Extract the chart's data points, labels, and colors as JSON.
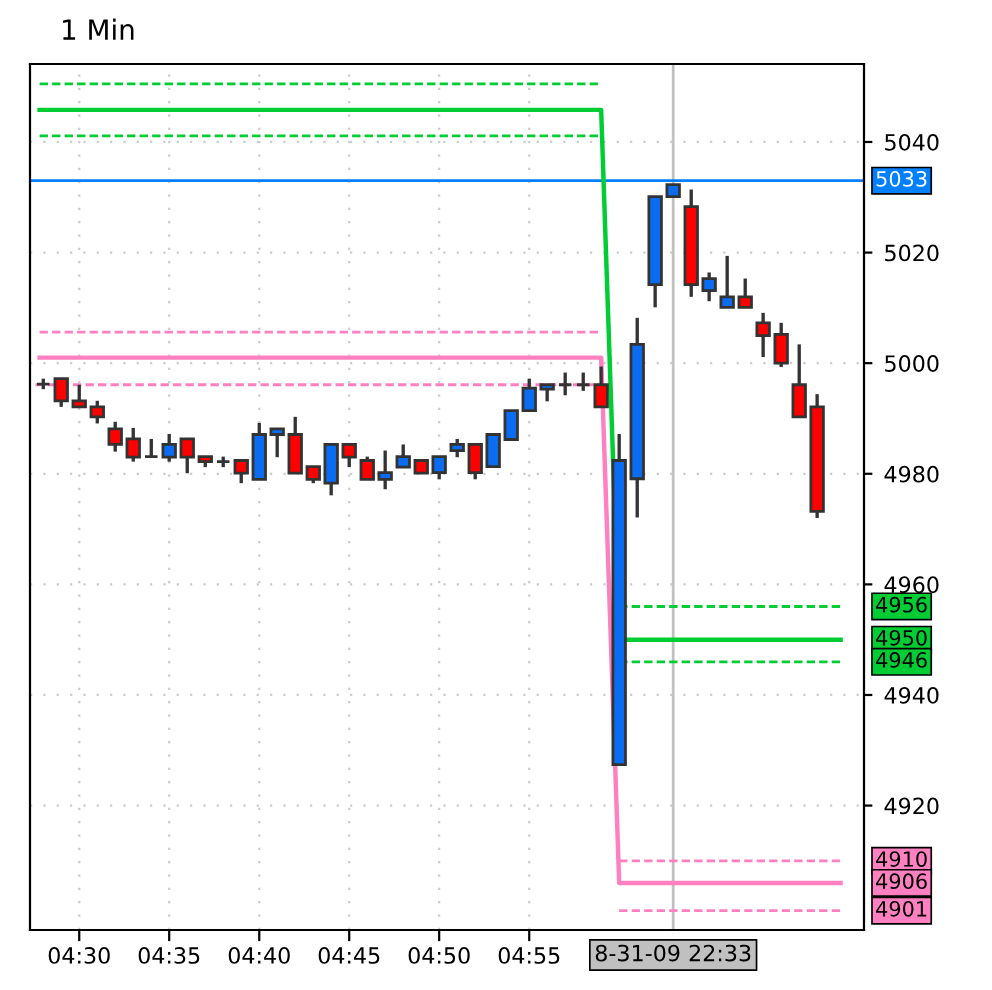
{
  "chart_data": {
    "type": "candlestick",
    "title": "1 Min",
    "x": [
      4.4667,
      4.4833,
      4.5,
      4.5167,
      4.5333,
      4.55,
      4.5667,
      4.5833,
      4.6,
      4.6167,
      4.6333,
      4.65,
      4.6667,
      4.6833,
      4.7,
      4.7167,
      4.7333,
      4.75,
      4.7667,
      4.7833,
      4.8,
      4.8167,
      4.8333,
      4.85,
      4.8667,
      4.8833,
      4.9,
      4.9167,
      4.9333,
      4.95,
      4.9667,
      4.9833,
      5.0,
      5.0167,
      5.0333,
      5.05,
      5.0667,
      5.0833,
      5.1,
      5.1167,
      5.1333,
      5.15,
      5.1667,
      5.1833
    ],
    "ohlc": [
      [
        4996.2,
        4997.2,
        4995.3,
        4996.2
      ],
      [
        4997.2,
        4997.2,
        4992.1,
        4993.2
      ],
      [
        4993.2,
        4996.1,
        4992.1,
        4992.1
      ],
      [
        4992.1,
        4993.2,
        4989.1,
        4990.3
      ],
      [
        4988.1,
        4989.4,
        4984.0,
        4985.3
      ],
      [
        4986.3,
        4988.3,
        4982.2,
        4983.0
      ],
      [
        4983.1,
        4986.3,
        4983.1,
        4983.1
      ],
      [
        4983.0,
        4987.2,
        4982.2,
        4985.3
      ],
      [
        4986.3,
        4986.3,
        4980.1,
        4983.0
      ],
      [
        4983.1,
        4983.1,
        4981.2,
        4982.2
      ],
      [
        4982.2,
        4983.1,
        4981.2,
        4982.2
      ],
      [
        4982.4,
        4982.4,
        4978.3,
        4980.1
      ],
      [
        4979.0,
        4989.2,
        4979.0,
        4987.1
      ],
      [
        4987.1,
        4988.1,
        4983.0,
        4988.1
      ],
      [
        4987.1,
        4990.3,
        4980.1,
        4980.1
      ],
      [
        4981.3,
        4981.3,
        4978.3,
        4979.0
      ],
      [
        4978.3,
        4985.3,
        4976.1,
        4985.3
      ],
      [
        4985.3,
        4985.3,
        4981.2,
        4983.0
      ],
      [
        4982.4,
        4983.1,
        4979.0,
        4979.0
      ],
      [
        4979.0,
        4984.2,
        4977.2,
        4980.2
      ],
      [
        4981.2,
        4985.3,
        4981.2,
        4983.1
      ],
      [
        4982.4,
        4982.4,
        4980.1,
        4980.1
      ],
      [
        4980.2,
        4983.1,
        4979.0,
        4983.1
      ],
      [
        4984.2,
        4986.3,
        4983.0,
        4985.3
      ],
      [
        4985.3,
        4985.3,
        4979.0,
        4980.2
      ],
      [
        4981.3,
        4987.1,
        4981.3,
        4987.1
      ],
      [
        4986.2,
        4991.4,
        4986.2,
        4991.4
      ],
      [
        4991.4,
        4997.2,
        4991.4,
        4995.5
      ],
      [
        4995.3,
        4996.1,
        4993.1,
        4996.1
      ],
      [
        4996.1,
        4998.3,
        4994.2,
        4996.1
      ],
      [
        4996.1,
        4998.3,
        4995.0,
        4996.1
      ],
      [
        4996.1,
        4999.4,
        4992.1,
        4992.1
      ],
      [
        4927.4,
        4987.2,
        4927.4,
        4982.4
      ],
      [
        4979.1,
        5008.2,
        4972.1,
        5003.4
      ],
      [
        5014.2,
        5030.1,
        5010.1,
        5030.1
      ],
      [
        5030.1,
        5032.3,
        5030.1,
        5032.3
      ],
      [
        5028.3,
        5031.4,
        5012.0,
        5014.2
      ],
      [
        5013.1,
        5016.4,
        5011.2,
        5015.3
      ],
      [
        5010.1,
        5019.4,
        5010.1,
        5012.0
      ],
      [
        5012.0,
        5015.3,
        5010.1,
        5010.1
      ],
      [
        5007.3,
        5009.1,
        5001.1,
        5005.0
      ],
      [
        5005.2,
        5007.3,
        4999.3,
        5000.0
      ],
      [
        4996.1,
        5003.4,
        4990.3,
        4990.3
      ],
      [
        4992.1,
        4994.4,
        4972.0,
        4973.2
      ]
    ],
    "colors": [
      "#333333",
      "#ff0000",
      "#ff0000",
      "#ff0000",
      "#ff0000",
      "#ff0000",
      "#333333",
      "#0a6cf0",
      "#ff0000",
      "#ff0000",
      "#333333",
      "#ff0000",
      "#0a6cf0",
      "#0a6cf0",
      "#ff0000",
      "#ff0000",
      "#0a6cf0",
      "#ff0000",
      "#ff0000",
      "#0a6cf0",
      "#0a6cf0",
      "#ff0000",
      "#0a6cf0",
      "#0a6cf0",
      "#ff0000",
      "#0a6cf0",
      "#0a6cf0",
      "#0a6cf0",
      "#0a6cf0",
      "#333333",
      "#333333",
      "#ff0000",
      "#0a6cf0",
      "#0a6cf0",
      "#0a6cf0",
      "#0a6cf0",
      "#ff0000",
      "#0a6cf0",
      "#0a6cf0",
      "#ff0000",
      "#ff0000",
      "#ff0000",
      "#ff0000",
      "#ff0000"
    ],
    "series": [
      {
        "type": "line",
        "color": "#00cc33",
        "line_style": "dashed",
        "x": [
          4.4633,
          4.9833,
          4.99,
          5.0,
          5.205
        ],
        "values": [
          5050.5,
          5050.5,
          null,
          4956,
          4956
        ],
        "value_labels": [
          null,
          null,
          null,
          null,
          "4956"
        ]
      },
      {
        "type": "line",
        "color": "#00cc33",
        "line_style": "solid",
        "x": [
          4.4633,
          4.9833,
          5.0,
          5.205
        ],
        "values": [
          5045.8,
          5045.8,
          4950,
          4950
        ],
        "value_labels": [
          null,
          null,
          null,
          "4950"
        ]
      },
      {
        "type": "line",
        "color": "#00cc33",
        "line_style": "dashed",
        "x": [
          4.4633,
          4.9833,
          4.99,
          5.0,
          5.205
        ],
        "values": [
          5041.1,
          5041.1,
          null,
          4946,
          4946
        ],
        "value_labels": [
          null,
          null,
          null,
          null,
          "4946"
        ]
      },
      {
        "type": "line",
        "color": "#ff80c0",
        "line_style": "dashed",
        "x": [
          4.4633,
          4.9833,
          4.99,
          5.0,
          5.205
        ],
        "values": [
          5005.6,
          5005.6,
          null,
          4910,
          4910
        ],
        "value_labels": [
          null,
          null,
          null,
          null,
          "4910"
        ]
      },
      {
        "type": "line",
        "color": "#ff80c0",
        "line_style": "solid",
        "x": [
          4.4633,
          4.9833,
          5.0,
          5.205
        ],
        "values": [
          5001.0,
          5001.0,
          4906,
          4906
        ],
        "value_labels": [
          null,
          null,
          null,
          "4906"
        ]
      },
      {
        "type": "line",
        "color": "#ff80c0",
        "line_style": "dashed",
        "x": [
          4.4595,
          4.9833,
          4.99,
          5.0,
          5.205
        ],
        "values": [
          4996.1,
          4996.1,
          null,
          4901,
          4901
        ],
        "value_labels": [
          null,
          null,
          null,
          null,
          "4901"
        ]
      }
    ],
    "ref_lines": [
      {
        "axis": "y",
        "value": 5033,
        "label": "5033",
        "color": "#0080ff"
      },
      {
        "axis": "x",
        "value": 5.05,
        "color": "#c0c0c0"
      }
    ],
    "annotations": [
      "8-31-09 22:33"
    ],
    "xlim": [
      4.4544,
      5.2267
    ],
    "ylim": [
      4897.5,
      5054.1
    ],
    "xticks": [
      {
        "value": 4.5,
        "label": "04:30"
      },
      {
        "value": 4.5833,
        "label": "04:35"
      },
      {
        "value": 4.6667,
        "label": "04:40"
      },
      {
        "value": 4.75,
        "label": "04:45"
      },
      {
        "value": 4.8333,
        "label": "04:50"
      },
      {
        "value": 4.9167,
        "label": "04:55"
      }
    ],
    "yticks": [
      4920,
      4940,
      4960,
      4980,
      5000,
      5020,
      5040
    ],
    "grid": true
  }
}
